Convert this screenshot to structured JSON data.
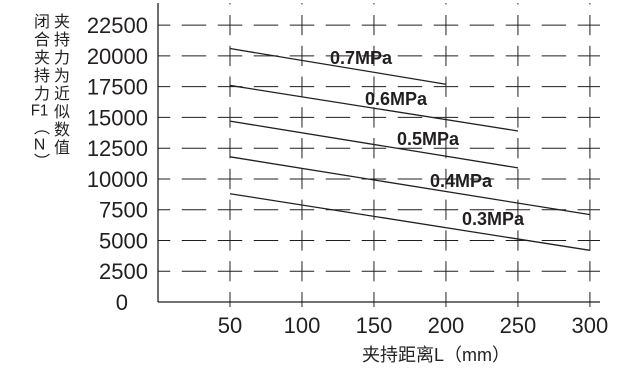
{
  "theme": {
    "ink": "#231f20",
    "background": "#ffffff"
  },
  "chart_data": {
    "type": "line",
    "xlabel": "夹持距离L（mm）",
    "ylabel": "闭合夹持力F1（N）",
    "ylabel_note": "夹持力为近似数值",
    "xlim": [
      0,
      307
    ],
    "ylim": [
      0,
      24300
    ],
    "xticks": [
      50,
      100,
      150,
      200,
      250,
      300
    ],
    "yticks": [
      0,
      2500,
      5000,
      7500,
      10000,
      12500,
      15000,
      17500,
      20000,
      22500
    ],
    "grid": true,
    "series": [
      {
        "name": "0.7MPa",
        "x": [
          50,
          200
        ],
        "y": [
          20600,
          17700
        ]
      },
      {
        "name": "0.6MPa",
        "x": [
          50,
          250
        ],
        "y": [
          17600,
          13900
        ]
      },
      {
        "name": "0.5MPa",
        "x": [
          50,
          250
        ],
        "y": [
          14700,
          10900
        ]
      },
      {
        "name": "0.4MPa",
        "x": [
          50,
          300
        ],
        "y": [
          11800,
          7100
        ]
      },
      {
        "name": "0.3MPa",
        "x": [
          50,
          300
        ],
        "y": [
          8800,
          4200
        ]
      }
    ]
  }
}
